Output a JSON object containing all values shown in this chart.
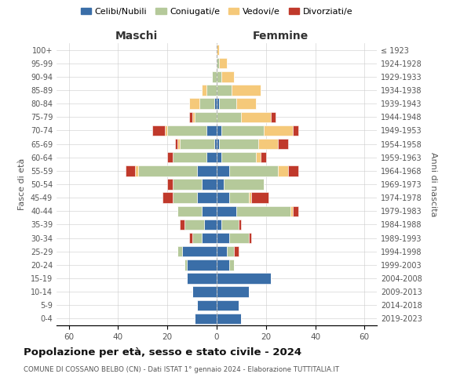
{
  "age_groups": [
    "0-4",
    "5-9",
    "10-14",
    "15-19",
    "20-24",
    "25-29",
    "30-34",
    "35-39",
    "40-44",
    "45-49",
    "50-54",
    "55-59",
    "60-64",
    "65-69",
    "70-74",
    "75-79",
    "80-84",
    "85-89",
    "90-94",
    "95-99",
    "100+"
  ],
  "birth_years": [
    "2019-2023",
    "2014-2018",
    "2009-2013",
    "2004-2008",
    "1999-2003",
    "1994-1998",
    "1989-1993",
    "1984-1988",
    "1979-1983",
    "1974-1978",
    "1969-1973",
    "1964-1968",
    "1959-1963",
    "1954-1958",
    "1949-1953",
    "1944-1948",
    "1939-1943",
    "1934-1938",
    "1929-1933",
    "1924-1928",
    "≤ 1923"
  ],
  "maschi": {
    "celibi": [
      9,
      8,
      10,
      12,
      12,
      14,
      6,
      5,
      6,
      8,
      6,
      8,
      4,
      1,
      4,
      0,
      1,
      0,
      0,
      0,
      0
    ],
    "coniugati": [
      0,
      0,
      0,
      0,
      1,
      2,
      4,
      8,
      10,
      10,
      12,
      24,
      14,
      14,
      16,
      9,
      6,
      4,
      2,
      0,
      0
    ],
    "vedovi": [
      0,
      0,
      0,
      0,
      0,
      0,
      0,
      0,
      0,
      0,
      0,
      1,
      0,
      1,
      1,
      1,
      4,
      2,
      0,
      0,
      0
    ],
    "divorziati": [
      0,
      0,
      0,
      0,
      0,
      0,
      1,
      2,
      0,
      4,
      2,
      4,
      2,
      1,
      5,
      1,
      0,
      0,
      0,
      0,
      0
    ]
  },
  "femmine": {
    "nubili": [
      10,
      9,
      13,
      22,
      5,
      4,
      5,
      2,
      8,
      5,
      3,
      5,
      2,
      1,
      2,
      0,
      1,
      0,
      0,
      0,
      0
    ],
    "coniugate": [
      0,
      0,
      0,
      0,
      2,
      3,
      8,
      7,
      22,
      8,
      16,
      20,
      14,
      16,
      17,
      10,
      7,
      6,
      2,
      1,
      0
    ],
    "vedove": [
      0,
      0,
      0,
      0,
      0,
      0,
      0,
      0,
      1,
      1,
      0,
      4,
      2,
      8,
      12,
      12,
      8,
      12,
      5,
      3,
      1
    ],
    "divorziate": [
      0,
      0,
      0,
      0,
      0,
      2,
      1,
      1,
      2,
      7,
      0,
      4,
      2,
      4,
      2,
      2,
      0,
      0,
      0,
      0,
      0
    ]
  },
  "colors": {
    "celibi": "#3a6ea8",
    "coniugati": "#b5c99a",
    "vedovi": "#f5c97a",
    "divorziati": "#c0392b"
  },
  "xlim": 65,
  "title": "Popolazione per età, sesso e stato civile - 2024",
  "subtitle": "COMUNE DI COSSANO BELBO (CN) - Dati ISTAT 1° gennaio 2024 - Elaborazione TUTTITALIA.IT",
  "ylabel_left": "Fasce di età",
  "ylabel_right": "Anni di nascita",
  "xlabel_maschi": "Maschi",
  "xlabel_femmine": "Femmine",
  "legend_labels": [
    "Celibi/Nubili",
    "Coniugati/e",
    "Vedovi/e",
    "Divorziati/e"
  ],
  "background_color": "#ffffff",
  "grid_color": "#cccccc"
}
